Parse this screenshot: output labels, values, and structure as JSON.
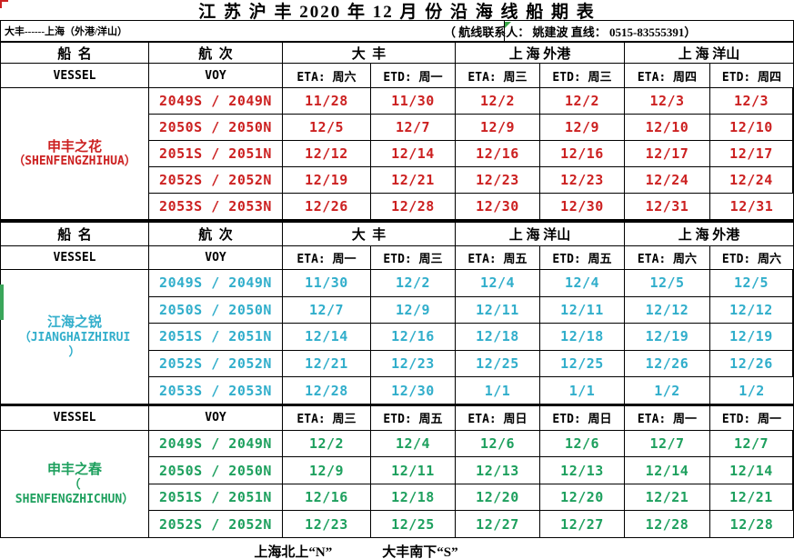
{
  "title": "江 苏 沪 丰 2020 年 12 月 份 沿 海 线 船 期 表",
  "subtitle": {
    "route": "大丰------上海（外港/洋山）",
    "contact": "（ 航线联系人： 姚建波 直线： 0515-83555391）"
  },
  "colors": {
    "vessel1_red": "#cc2121",
    "vessel2_cyan": "#31aecb",
    "vessel3_green": "#1ea05e",
    "marker_green": "#3aa648",
    "border_black": "#000000"
  },
  "tables": [
    {
      "vessel_cn": "申丰之花",
      "vessel_en_lines": [
        "（SHENFENGZHIHUA）"
      ],
      "color": "#cc2121",
      "port_header": [
        {
          "label": "船  名",
          "span": 1
        },
        {
          "label": "航  次",
          "span": 1
        },
        {
          "label": "大  丰",
          "span": 2
        },
        {
          "label": "上 海 外港",
          "span": 2
        },
        {
          "label": "上 海 洋山",
          "span": 2
        }
      ],
      "sub_header": [
        "VESSEL",
        "VOY",
        "ETA: 周六",
        "ETD: 周一",
        "ETA: 周三",
        "ETD: 周三",
        "ETA: 周四",
        "ETD: 周四"
      ],
      "rows": [
        {
          "voy": "2049S / 2049N",
          "dates": [
            "11/28",
            "11/30",
            "12/2",
            "12/2",
            "12/3",
            "12/3"
          ]
        },
        {
          "voy": "2050S / 2050N",
          "dates": [
            "12/5",
            "12/7",
            "12/9",
            "12/9",
            "12/10",
            "12/10"
          ]
        },
        {
          "voy": "2051S / 2051N",
          "dates": [
            "12/12",
            "12/14",
            "12/16",
            "12/16",
            "12/17",
            "12/17"
          ]
        },
        {
          "voy": "2052S / 2052N",
          "dates": [
            "12/19",
            "12/21",
            "12/23",
            "12/23",
            "12/24",
            "12/24"
          ]
        },
        {
          "voy": "2053S / 2053N",
          "dates": [
            "12/26",
            "12/28",
            "12/30",
            "12/30",
            "12/31",
            "12/31"
          ]
        }
      ]
    },
    {
      "vessel_cn": "江海之锐",
      "vessel_en_lines": [
        "（JIANGHAIZHIRUI",
        "）"
      ],
      "color": "#31aecb",
      "port_header": [
        {
          "label": "船  名",
          "span": 1
        },
        {
          "label": "航  次",
          "span": 1
        },
        {
          "label": "大  丰",
          "span": 2
        },
        {
          "label": "上 海 洋山",
          "span": 2
        },
        {
          "label": "上 海 外港",
          "span": 2
        }
      ],
      "sub_header": [
        "VESSEL",
        "VOY",
        "ETA: 周一",
        "ETD: 周三",
        "ETA: 周五",
        "ETD: 周五",
        "ETA: 周六",
        "ETD: 周六"
      ],
      "rows": [
        {
          "voy": "2049S / 2049N",
          "dates": [
            "11/30",
            "12/2",
            "12/4",
            "12/4",
            "12/5",
            "12/5"
          ]
        },
        {
          "voy": "2050S / 2050N",
          "dates": [
            "12/7",
            "12/9",
            "12/11",
            "12/11",
            "12/12",
            "12/12"
          ]
        },
        {
          "voy": "2051S / 2051N",
          "dates": [
            "12/14",
            "12/16",
            "12/18",
            "12/18",
            "12/19",
            "12/19"
          ]
        },
        {
          "voy": "2052S / 2052N",
          "dates": [
            "12/21",
            "12/23",
            "12/25",
            "12/25",
            "12/26",
            "12/26"
          ]
        },
        {
          "voy": "2053S / 2053N",
          "dates": [
            "12/28",
            "12/30",
            "1/1",
            "1/1",
            "1/2",
            "1/2"
          ]
        }
      ]
    },
    {
      "vessel_cn": "申丰之春",
      "vessel_en_lines": [
        "（",
        "SHENFENGZHICHUN）"
      ],
      "color": "#1ea05e",
      "port_header": null,
      "sub_header": [
        "VESSEL",
        "VOY",
        "ETA: 周三",
        "ETD: 周五",
        "ETA: 周日",
        "ETD: 周日",
        "ETA: 周一",
        "ETD: 周一"
      ],
      "rows": [
        {
          "voy": "2049S / 2049N",
          "dates": [
            "12/2",
            "12/4",
            "12/6",
            "12/6",
            "12/7",
            "12/7"
          ]
        },
        {
          "voy": "2050S / 2050N",
          "dates": [
            "12/9",
            "12/11",
            "12/13",
            "12/13",
            "12/14",
            "12/14"
          ]
        },
        {
          "voy": "2051S / 2051N",
          "dates": [
            "12/16",
            "12/18",
            "12/20",
            "12/20",
            "12/21",
            "12/21"
          ]
        },
        {
          "voy": "2052S / 2052N",
          "dates": [
            "12/23",
            "12/25",
            "12/27",
            "12/27",
            "12/28",
            "12/28"
          ]
        }
      ]
    }
  ],
  "footer": {
    "north": "上海北上“N”",
    "south": "大丰南下“S”"
  }
}
